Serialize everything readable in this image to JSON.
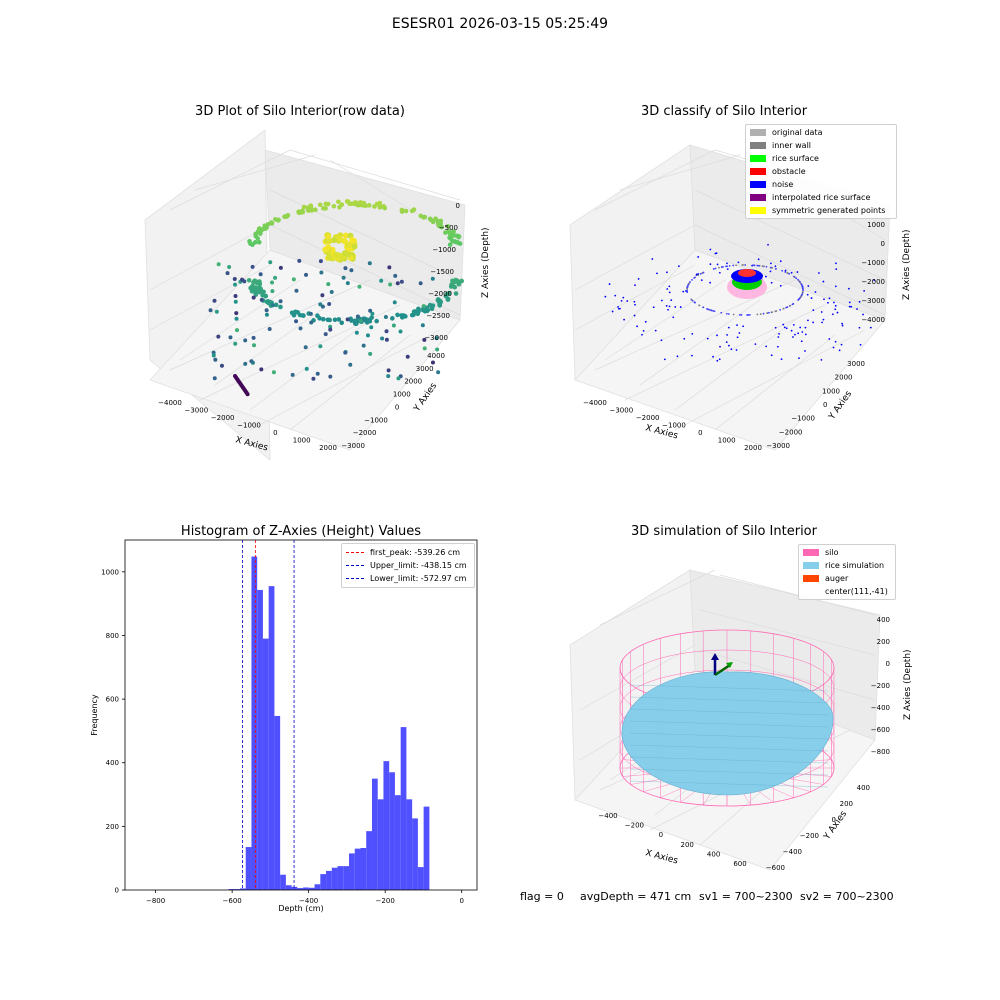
{
  "suptitle": "ESESR01 2026-03-15 05:25:49",
  "status": {
    "flag": "flag = 0",
    "avg_depth": "avgDepth = 471 cm",
    "sv1": "sv1 = 700~2300",
    "sv2": "sv2 = 700~2300"
  },
  "chart_data": [
    {
      "type": "scatter",
      "title": "3D Plot of Silo Interior(row data)",
      "xlabel": "X Axies",
      "ylabel": "Y Axies",
      "zlabel": "Z Axies (Depth)",
      "xticks": [
        "−4000",
        "−3000",
        "−2000",
        "−1000",
        "0",
        "1000",
        "2000"
      ],
      "yticks": [
        "−3000",
        "−2000",
        "−1000",
        "0",
        "1000",
        "2000",
        "3000",
        "4000"
      ],
      "zticks": [
        "0",
        "−500",
        "−1000",
        "−1500",
        "−2000",
        "−2500",
        "−3000"
      ],
      "colormap": "viridis"
    },
    {
      "type": "scatter",
      "title": "3D classify of Silo Interior",
      "xlabel": "X Axies",
      "ylabel": "Y Axies",
      "zlabel": "Z Axies (Depth)",
      "xticks": [
        "−4000",
        "−3000",
        "−2000",
        "−1000",
        "0",
        "1000",
        "2000"
      ],
      "yticks": [
        "−3000",
        "−2000",
        "−1000",
        "0",
        "1000",
        "2000",
        "3000"
      ],
      "zticks": [
        "1000",
        "0",
        "−1000",
        "−2000",
        "−3000",
        "−4000"
      ],
      "legend": [
        {
          "name": "original data",
          "color": "#b0b0b0"
        },
        {
          "name": "inner wall",
          "color": "#808080"
        },
        {
          "name": "rice surface",
          "color": "#00ff00"
        },
        {
          "name": "obstacle",
          "color": "#ff0000"
        },
        {
          "name": "noise",
          "color": "#0000ff"
        },
        {
          "name": "interpolated rice surface",
          "color": "#800080"
        },
        {
          "name": "symmetric generated points",
          "color": "#ffff00"
        }
      ]
    },
    {
      "type": "bar",
      "title": "Histogram of Z-Axies (Height) Values",
      "xlabel": "Depth (cm)",
      "ylabel": "Frequency",
      "xlim": [
        -880,
        40
      ],
      "ylim": [
        0,
        1100
      ],
      "xticks": [
        -800,
        -600,
        -400,
        -200,
        0
      ],
      "yticks": [
        0,
        200,
        400,
        600,
        800,
        1000
      ],
      "bar_color": "#5050ff",
      "bin_width": 15,
      "bins": [
        {
          "x": -602,
          "v": 3
        },
        {
          "x": -587,
          "v": 3
        },
        {
          "x": -572,
          "v": 5
        },
        {
          "x": -557,
          "v": 135
        },
        {
          "x": -542,
          "v": 1048
        },
        {
          "x": -527,
          "v": 943
        },
        {
          "x": -512,
          "v": 790
        },
        {
          "x": -497,
          "v": 955
        },
        {
          "x": -482,
          "v": 547
        },
        {
          "x": -467,
          "v": 48
        },
        {
          "x": -452,
          "v": 15
        },
        {
          "x": -437,
          "v": 10
        },
        {
          "x": -422,
          "v": 6
        },
        {
          "x": -407,
          "v": 8
        },
        {
          "x": -392,
          "v": 7
        },
        {
          "x": -377,
          "v": 18
        },
        {
          "x": -362,
          "v": 50
        },
        {
          "x": -347,
          "v": 60
        },
        {
          "x": -332,
          "v": 70
        },
        {
          "x": -317,
          "v": 75
        },
        {
          "x": -302,
          "v": 75
        },
        {
          "x": -287,
          "v": 115
        },
        {
          "x": -272,
          "v": 130
        },
        {
          "x": -257,
          "v": 132
        },
        {
          "x": -242,
          "v": 185
        },
        {
          "x": -227,
          "v": 350
        },
        {
          "x": -212,
          "v": 285
        },
        {
          "x": -197,
          "v": 405
        },
        {
          "x": -182,
          "v": 370
        },
        {
          "x": -167,
          "v": 298
        },
        {
          "x": -152,
          "v": 512
        },
        {
          "x": -137,
          "v": 285
        },
        {
          "x": -122,
          "v": 225
        },
        {
          "x": -107,
          "v": 72
        },
        {
          "x": -92,
          "v": 262
        }
      ],
      "vlines": [
        {
          "name": "first_peak: -539.26 cm",
          "x": -539.26,
          "color": "#ff0000"
        },
        {
          "name": "Upper_limit: -438.15 cm",
          "x": -438.15,
          "color": "#0000cc"
        },
        {
          "name": "Lower_limit: -572.97 cm",
          "x": -572.97,
          "color": "#0000cc"
        }
      ]
    },
    {
      "type": "surface",
      "title": "3D simulation of Silo Interior",
      "xlabel": "X Axies",
      "ylabel": "Y Axies",
      "zlabel": "Z Axies (Depth)",
      "xticks": [
        "−400",
        "−200",
        "0",
        "200",
        "400",
        "600"
      ],
      "yticks": [
        "−600",
        "−400",
        "−200",
        "0",
        "200",
        "400"
      ],
      "zticks": [
        "400",
        "200",
        "0",
        "−200",
        "−400",
        "−600",
        "−800"
      ],
      "legend": [
        {
          "name": "silo",
          "color": "#ff69b4"
        },
        {
          "name": "rice simulation",
          "color": "#87ceeb"
        },
        {
          "name": "auger",
          "color": "#ff4500"
        },
        {
          "name": "center(111,-41)",
          "color": ""
        }
      ]
    }
  ]
}
